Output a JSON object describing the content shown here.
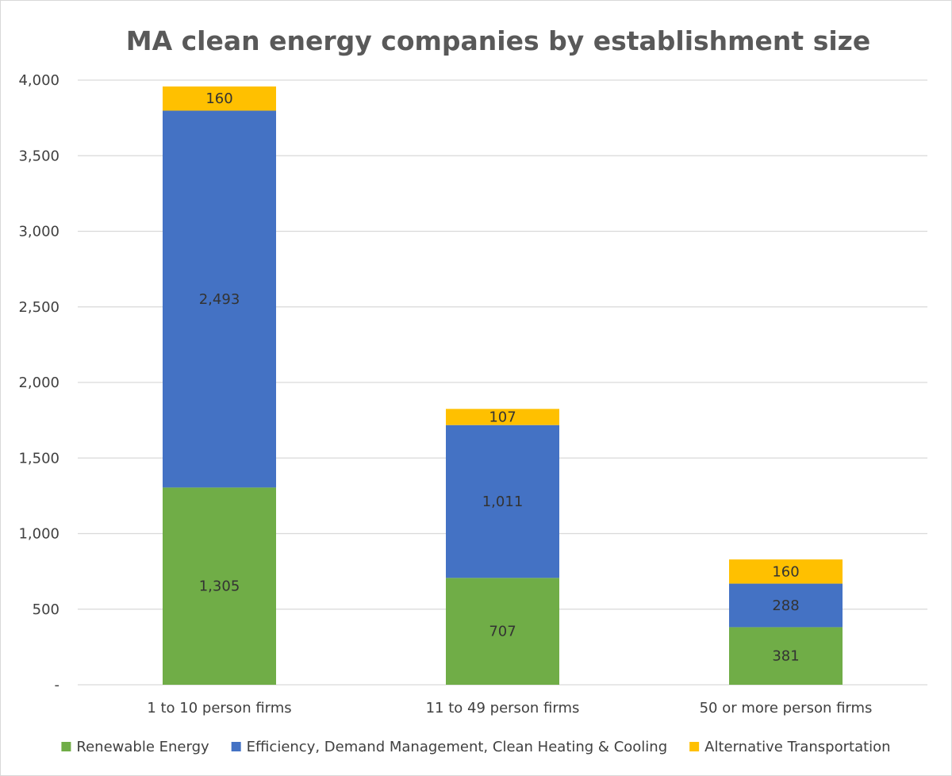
{
  "chart_data": {
    "type": "bar",
    "stacked": true,
    "title": "MA clean energy companies by establishment size",
    "xlabel": "",
    "ylabel": "",
    "categories": [
      "1 to 10 person firms",
      "11 to 49 person firms",
      "50 or more person firms"
    ],
    "series": [
      {
        "name": "Renewable Energy",
        "color": "#70ad47",
        "values": [
          1305,
          707,
          381
        ]
      },
      {
        "name": "Efficiency, Demand Management, Clean Heating & Cooling",
        "color": "#4472c4",
        "values": [
          2493,
          1011,
          288
        ]
      },
      {
        "name": "Alternative Transportation",
        "color": "#ffc000",
        "values": [
          160,
          107,
          160
        ]
      }
    ],
    "data_labels": [
      [
        "1,305",
        "707",
        "381"
      ],
      [
        "2,493",
        "1,011",
        "288"
      ],
      [
        "160",
        "107",
        "160"
      ]
    ],
    "ylim": [
      0,
      4000
    ],
    "yticks": [
      0,
      500,
      1000,
      1500,
      2000,
      2500,
      3000,
      3500,
      4000
    ],
    "ytick_labels": [
      "-",
      "500",
      "1,000",
      "1,500",
      "2,000",
      "2,500",
      "3,000",
      "3,500",
      "4,000"
    ],
    "grid": true,
    "legend_position": "bottom"
  }
}
